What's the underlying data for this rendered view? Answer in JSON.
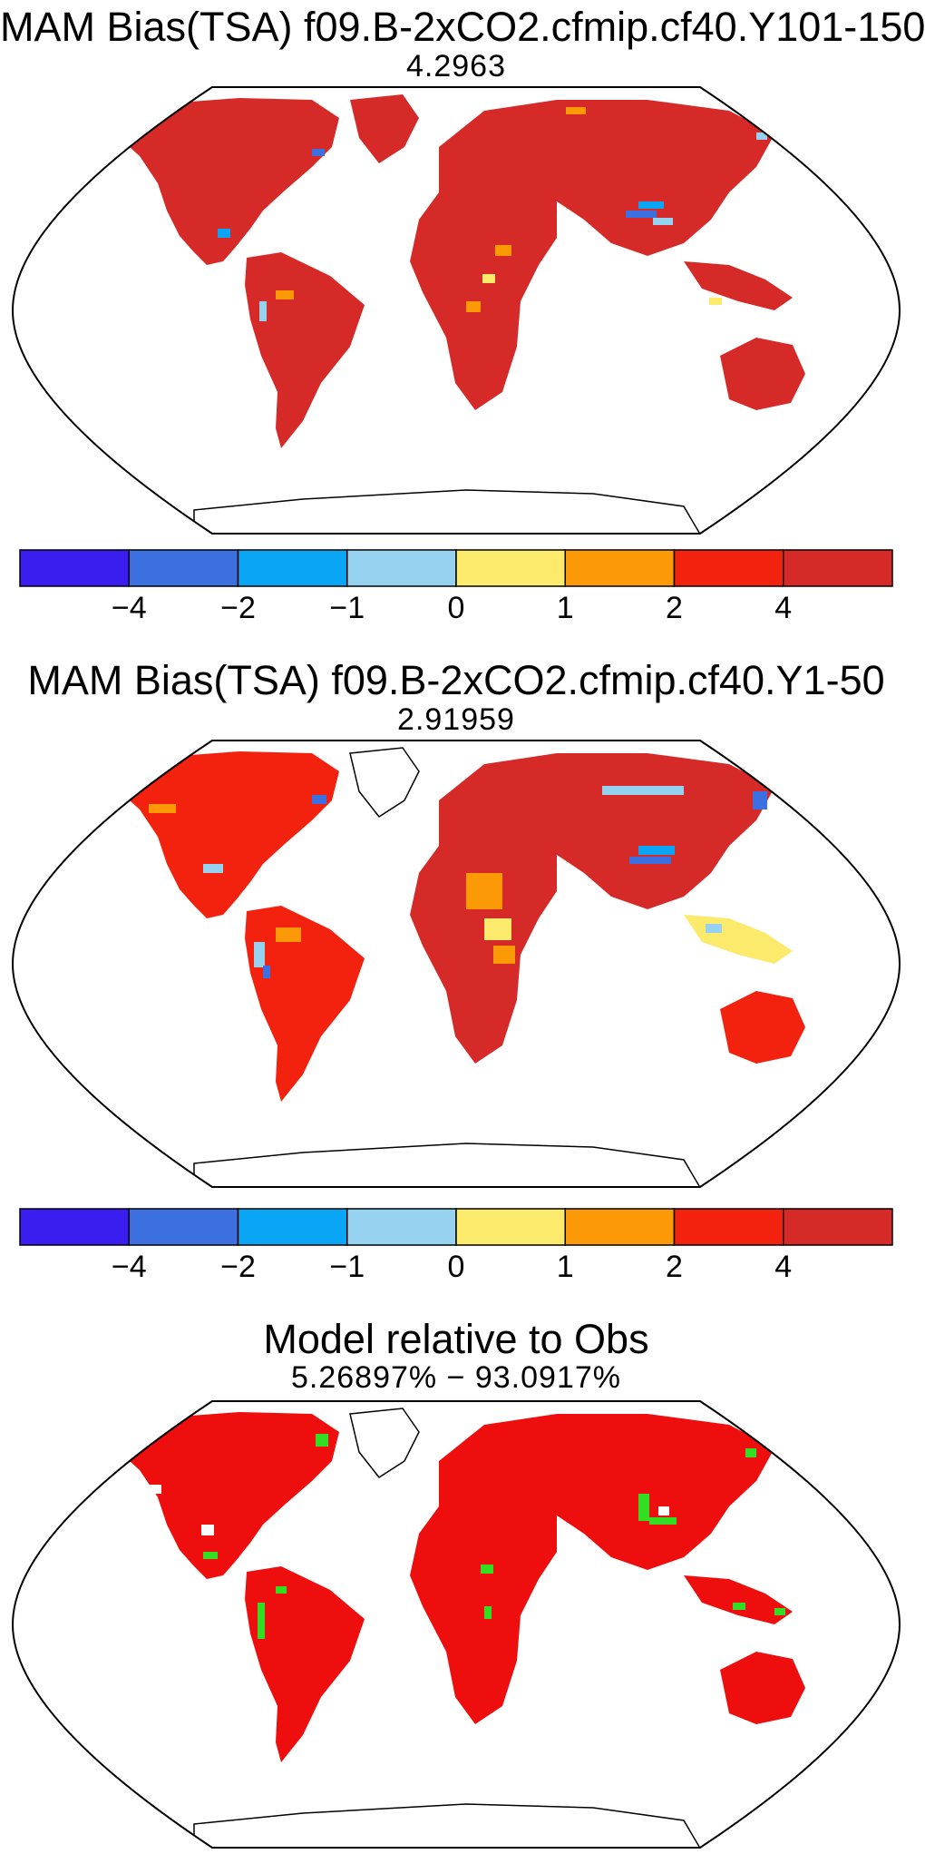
{
  "panels": [
    {
      "title": "MAM Bias(TSA) f09.B-2xCO2.cfmip.cf40.Y101-150",
      "subtitle": "4.2963"
    },
    {
      "title": "MAM Bias(TSA) f09.B-2xCO2.cfmip.cf40.Y1-50",
      "subtitle": "2.91959"
    },
    {
      "title": "Model relative to Obs",
      "subtitle": "5.26897% − 93.0917%"
    }
  ],
  "colorbar": {
    "colors": [
      "#3a1ef0",
      "#3c6fe0",
      "#0aa6f5",
      "#96d2ef",
      "#fbea6b",
      "#fb9a06",
      "#f3220f",
      "#d62a28"
    ],
    "labels": [
      "−4",
      "−2",
      "−1",
      "0",
      "1",
      "2",
      "4"
    ]
  },
  "map_colors": {
    "land_warm": "#d62a28",
    "land_hot": "#f3220f",
    "land_ratio": "#ee0e0e",
    "highlight_green": "#33dd22",
    "coastline": "#000000"
  }
}
